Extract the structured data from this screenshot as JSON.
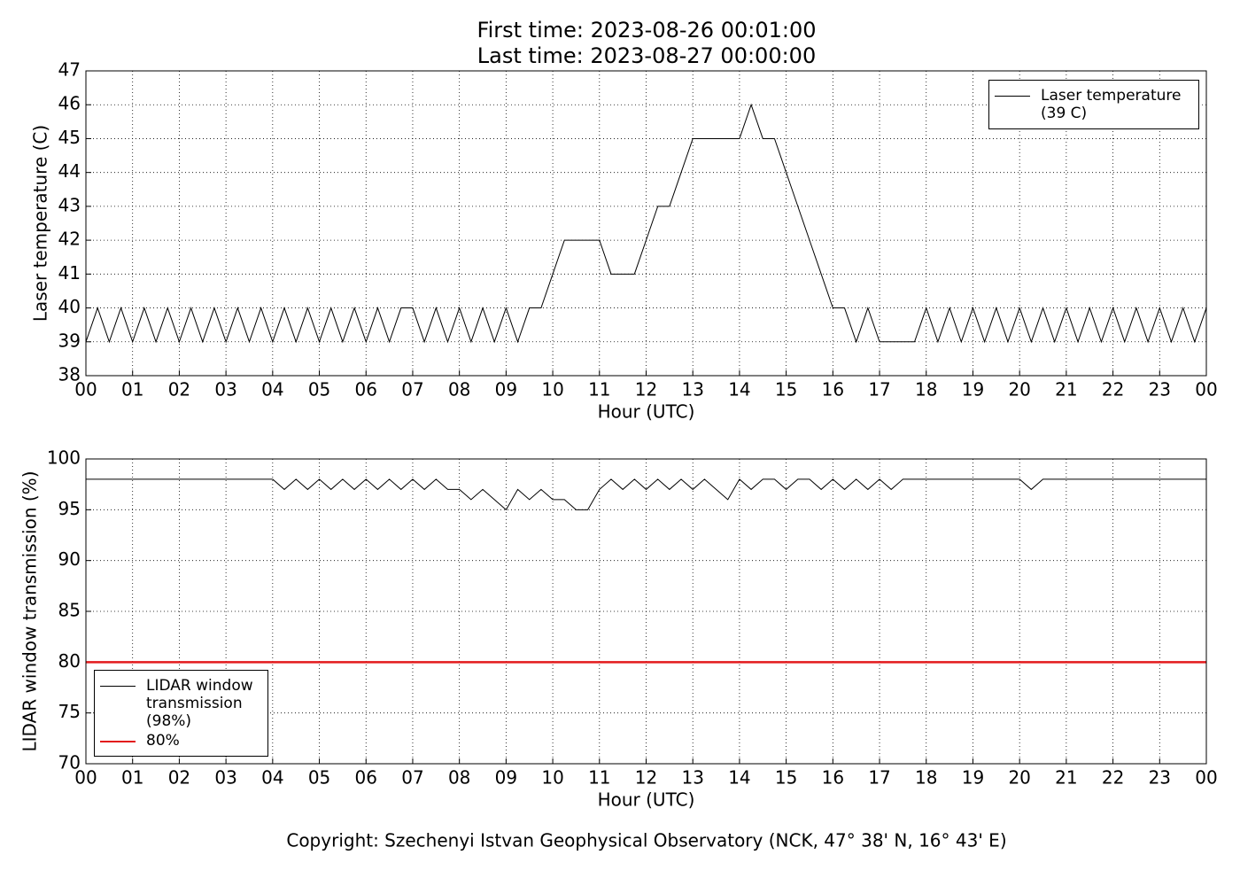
{
  "title": [
    "First time: 2023-08-26 00:01:00",
    "Last time: 2023-08-27 00:00:00"
  ],
  "footer": "Copyright: Szechenyi Istvan Geophysical Observatory (NCK, 47° 38' N, 16° 43' E)",
  "chart_data": [
    {
      "type": "line",
      "xlabel": "Hour (UTC)",
      "ylabel": "Laser temperature (C)",
      "xlim": [
        0,
        24
      ],
      "ylim": [
        38,
        47
      ],
      "grid": true,
      "legend": "upper right",
      "xticks": [
        {
          "value": 0,
          "label": "00"
        },
        {
          "value": 1,
          "label": "01"
        },
        {
          "value": 2,
          "label": "02"
        },
        {
          "value": 3,
          "label": "03"
        },
        {
          "value": 4,
          "label": "04"
        },
        {
          "value": 5,
          "label": "05"
        },
        {
          "value": 6,
          "label": "06"
        },
        {
          "value": 7,
          "label": "07"
        },
        {
          "value": 8,
          "label": "08"
        },
        {
          "value": 9,
          "label": "09"
        },
        {
          "value": 10,
          "label": "10"
        },
        {
          "value": 11,
          "label": "11"
        },
        {
          "value": 12,
          "label": "12"
        },
        {
          "value": 13,
          "label": "13"
        },
        {
          "value": 14,
          "label": "14"
        },
        {
          "value": 15,
          "label": "15"
        },
        {
          "value": 16,
          "label": "16"
        },
        {
          "value": 17,
          "label": "17"
        },
        {
          "value": 18,
          "label": "18"
        },
        {
          "value": 19,
          "label": "19"
        },
        {
          "value": 20,
          "label": "20"
        },
        {
          "value": 21,
          "label": "21"
        },
        {
          "value": 22,
          "label": "22"
        },
        {
          "value": 23,
          "label": "23"
        },
        {
          "value": 24,
          "label": "00"
        }
      ],
      "yticks": [
        38,
        39,
        40,
        41,
        42,
        43,
        44,
        45,
        46,
        47
      ],
      "x": [
        0,
        0.25,
        0.5,
        0.75,
        1,
        1.25,
        1.5,
        1.75,
        2,
        2.25,
        2.5,
        2.75,
        3,
        3.25,
        3.5,
        3.75,
        4,
        4.25,
        4.5,
        4.75,
        5,
        5.25,
        5.5,
        5.75,
        6,
        6.25,
        6.5,
        6.75,
        7,
        7.25,
        7.5,
        7.75,
        8,
        8.25,
        8.5,
        8.75,
        9,
        9.25,
        9.5,
        9.75,
        10,
        10.25,
        10.5,
        10.75,
        11,
        11.25,
        11.5,
        11.75,
        12,
        12.25,
        12.5,
        12.75,
        13,
        13.25,
        13.5,
        13.75,
        14,
        14.25,
        14.5,
        14.75,
        15,
        15.25,
        15.5,
        15.75,
        16,
        16.25,
        16.5,
        16.75,
        17,
        17.25,
        17.5,
        17.75,
        18,
        18.25,
        18.5,
        18.75,
        19,
        19.25,
        19.5,
        19.75,
        20,
        20.25,
        20.5,
        20.75,
        21,
        21.25,
        21.5,
        21.75,
        22,
        22.25,
        22.5,
        22.75,
        23,
        23.25,
        23.5,
        23.75,
        24
      ],
      "series": [
        {
          "name": "Laser temperature (39 C)",
          "color": "#000000",
          "linewidth": 1,
          "values": [
            39,
            40,
            39,
            40,
            39,
            40,
            39,
            40,
            39,
            40,
            39,
            40,
            39,
            40,
            39,
            40,
            39,
            40,
            39,
            40,
            39,
            40,
            39,
            40,
            39,
            40,
            39,
            40,
            40,
            39,
            40,
            39,
            40,
            39,
            40,
            39,
            40,
            39,
            40,
            40,
            41,
            42,
            42,
            42,
            42,
            41,
            41,
            41,
            42,
            43,
            43,
            44,
            45,
            45,
            45,
            45,
            45,
            46,
            45,
            45,
            44,
            43,
            42,
            41,
            40,
            40,
            39,
            40,
            39,
            39,
            39,
            39,
            40,
            39,
            40,
            39,
            40,
            39,
            40,
            39,
            40,
            39,
            40,
            39,
            40,
            39,
            40,
            39,
            40,
            39,
            40,
            39,
            40,
            39,
            40,
            39,
            40
          ]
        }
      ]
    },
    {
      "type": "line",
      "xlabel": "Hour (UTC)",
      "ylabel": "LIDAR window transmission (%)",
      "xlim": [
        0,
        24
      ],
      "ylim": [
        70,
        100
      ],
      "grid": true,
      "legend": "lower left",
      "xticks": [
        {
          "value": 0,
          "label": "00"
        },
        {
          "value": 1,
          "label": "01"
        },
        {
          "value": 2,
          "label": "02"
        },
        {
          "value": 3,
          "label": "03"
        },
        {
          "value": 4,
          "label": "04"
        },
        {
          "value": 5,
          "label": "05"
        },
        {
          "value": 6,
          "label": "06"
        },
        {
          "value": 7,
          "label": "07"
        },
        {
          "value": 8,
          "label": "08"
        },
        {
          "value": 9,
          "label": "09"
        },
        {
          "value": 10,
          "label": "10"
        },
        {
          "value": 11,
          "label": "11"
        },
        {
          "value": 12,
          "label": "12"
        },
        {
          "value": 13,
          "label": "13"
        },
        {
          "value": 14,
          "label": "14"
        },
        {
          "value": 15,
          "label": "15"
        },
        {
          "value": 16,
          "label": "16"
        },
        {
          "value": 17,
          "label": "17"
        },
        {
          "value": 18,
          "label": "18"
        },
        {
          "value": 19,
          "label": "19"
        },
        {
          "value": 20,
          "label": "20"
        },
        {
          "value": 21,
          "label": "21"
        },
        {
          "value": 22,
          "label": "22"
        },
        {
          "value": 23,
          "label": "23"
        },
        {
          "value": 24,
          "label": "00"
        }
      ],
      "yticks": [
        70,
        75,
        80,
        85,
        90,
        95,
        100
      ],
      "x": [
        0,
        0.25,
        0.5,
        0.75,
        1,
        1.25,
        1.5,
        1.75,
        2,
        2.25,
        2.5,
        2.75,
        3,
        3.25,
        3.5,
        3.75,
        4,
        4.25,
        4.5,
        4.75,
        5,
        5.25,
        5.5,
        5.75,
        6,
        6.25,
        6.5,
        6.75,
        7,
        7.25,
        7.5,
        7.75,
        8,
        8.25,
        8.5,
        8.75,
        9,
        9.25,
        9.5,
        9.75,
        10,
        10.25,
        10.5,
        10.75,
        11,
        11.25,
        11.5,
        11.75,
        12,
        12.25,
        12.5,
        12.75,
        13,
        13.25,
        13.5,
        13.75,
        14,
        14.25,
        14.5,
        14.75,
        15,
        15.25,
        15.5,
        15.75,
        16,
        16.25,
        16.5,
        16.75,
        17,
        17.25,
        17.5,
        17.75,
        18,
        18.25,
        18.5,
        18.75,
        19,
        19.25,
        19.5,
        19.75,
        20,
        20.25,
        20.5,
        20.75,
        21,
        21.25,
        21.5,
        21.75,
        22,
        22.25,
        22.5,
        22.75,
        23,
        23.25,
        23.5,
        23.75,
        24
      ],
      "series": [
        {
          "name": "LIDAR window transmission (98%)",
          "color": "#000000",
          "linewidth": 1,
          "values": [
            98,
            98,
            98,
            98,
            98,
            98,
            98,
            98,
            98,
            98,
            98,
            98,
            98,
            98,
            98,
            98,
            98,
            97,
            98,
            97,
            98,
            97,
            98,
            97,
            98,
            97,
            98,
            97,
            98,
            97,
            98,
            97,
            97,
            96,
            97,
            96,
            95,
            97,
            96,
            97,
            96,
            96,
            95,
            95,
            97,
            98,
            97,
            98,
            97,
            98,
            97,
            98,
            97,
            98,
            97,
            96,
            98,
            97,
            98,
            98,
            97,
            98,
            98,
            97,
            98,
            97,
            98,
            97,
            98,
            97,
            98,
            98,
            98,
            98,
            98,
            98,
            98,
            98,
            98,
            98,
            98,
            97,
            98,
            98,
            98,
            98,
            98,
            98,
            98,
            98,
            98,
            98,
            98,
            98,
            98,
            98,
            98
          ]
        },
        {
          "name": "80%",
          "color": "#e31a1c",
          "linewidth": 2.5,
          "x": [
            0,
            24
          ],
          "values": [
            80,
            80
          ]
        }
      ]
    }
  ]
}
